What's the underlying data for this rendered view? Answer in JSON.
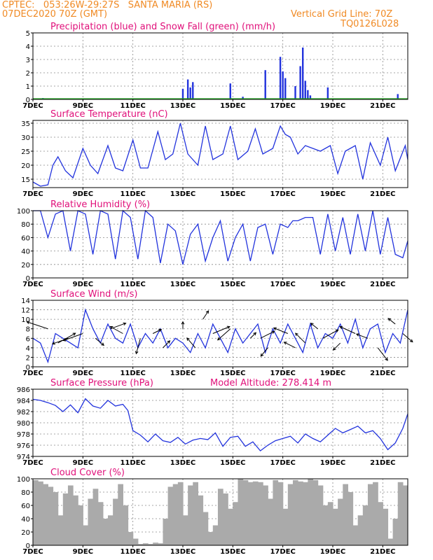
{
  "header": {
    "line1_left": "CPTEC:   053:26W-29:27S   SANTA MARIA (RS)",
    "line2_left": "07DEC2020 70Z (GMT)",
    "line1_right": "Vertical Grid Line: 70Z",
    "line2_right": "TQ0126L028"
  },
  "colors": {
    "title": "#e0107a",
    "header": "#f08a24",
    "series": "#2233dd",
    "snow": "#22aa22",
    "cloud": "#aaaaaa"
  },
  "x_ticks": [
    "7DEC",
    "9DEC",
    "11DEC",
    "13DEC",
    "15DEC",
    "17DEC",
    "19DEC",
    "21DEC"
  ],
  "chart_data": [
    {
      "type": "bar",
      "title": "Precipitation (blue) and Snow Fall (green) (mm/h)",
      "ylim": [
        0,
        5
      ],
      "yticks": [
        "0",
        "1",
        "2",
        "3",
        "4",
        "5"
      ],
      "x": [
        7.4,
        13.0,
        13.2,
        13.3,
        13.4,
        14.9,
        15.4,
        16.3,
        16.9,
        17.0,
        17.1,
        17.5,
        17.7,
        17.8,
        17.9,
        18.0,
        18.1,
        18.8,
        21.6
      ],
      "values": [
        0.1,
        0.8,
        1.5,
        0.9,
        1.3,
        1.2,
        0.2,
        2.2,
        3.2,
        2.1,
        1.6,
        1.0,
        2.5,
        3.9,
        1.4,
        0.7,
        0.3,
        0.9,
        0.4
      ],
      "snow": []
    },
    {
      "type": "line",
      "title": "Surface Temperature (nC)",
      "ylim": [
        12,
        36
      ],
      "yticks": [
        "15",
        "20",
        "25",
        "30",
        "35"
      ],
      "x": [
        7.0,
        7.3,
        7.6,
        7.8,
        8.0,
        8.3,
        8.6,
        9.0,
        9.3,
        9.6,
        10.0,
        10.3,
        10.6,
        11.0,
        11.3,
        11.6,
        12.0,
        12.3,
        12.6,
        12.9,
        13.2,
        13.6,
        13.9,
        14.2,
        14.6,
        14.9,
        15.2,
        15.6,
        15.9,
        16.2,
        16.6,
        16.9,
        17.1,
        17.3,
        17.6,
        17.9,
        18.2,
        18.5,
        18.9,
        19.2,
        19.5,
        19.9,
        20.2,
        20.5,
        20.9,
        21.2,
        21.5,
        21.9,
        22.0
      ],
      "y": [
        14,
        12.5,
        13,
        20,
        23,
        18,
        15.5,
        26,
        20,
        17,
        27,
        19,
        18,
        29,
        19,
        19,
        32,
        22,
        24,
        35,
        24,
        20,
        34,
        22,
        24,
        34,
        22,
        25,
        33,
        24,
        26,
        34,
        31,
        30,
        24,
        27,
        26,
        25,
        27,
        17,
        25,
        27,
        15,
        28,
        20,
        30,
        18,
        27,
        22
      ]
    },
    {
      "type": "line",
      "title": "Relative Humidity (%)",
      "ylim": [
        0,
        100
      ],
      "yticks": [
        "0",
        "20",
        "40",
        "60",
        "80",
        "100"
      ],
      "x": [
        7.0,
        7.3,
        7.6,
        7.9,
        8.2,
        8.5,
        8.8,
        9.1,
        9.4,
        9.7,
        10.0,
        10.3,
        10.6,
        10.9,
        11.2,
        11.5,
        11.8,
        12.1,
        12.4,
        12.7,
        13.0,
        13.3,
        13.6,
        13.9,
        14.2,
        14.5,
        14.8,
        15.1,
        15.4,
        15.7,
        16.0,
        16.3,
        16.6,
        16.9,
        17.2,
        17.4,
        17.6,
        17.9,
        18.2,
        18.5,
        18.8,
        19.1,
        19.4,
        19.7,
        20.0,
        20.3,
        20.6,
        20.9,
        21.2,
        21.5,
        21.8,
        22.0
      ],
      "y": [
        100,
        100,
        60,
        95,
        100,
        40,
        100,
        95,
        35,
        100,
        95,
        28,
        100,
        90,
        28,
        100,
        90,
        22,
        80,
        70,
        20,
        65,
        80,
        25,
        60,
        85,
        25,
        60,
        80,
        25,
        75,
        80,
        35,
        80,
        75,
        85,
        85,
        90,
        90,
        35,
        95,
        40,
        90,
        35,
        95,
        40,
        100,
        35,
        90,
        35,
        30,
        55
      ]
    },
    {
      "type": "line",
      "title": "Surface Wind (m/s)",
      "ylim": [
        0,
        14
      ],
      "yticks": [
        "0",
        "2",
        "4",
        "6",
        "8",
        "10",
        "12",
        "14"
      ],
      "x": [
        7.0,
        7.3,
        7.6,
        7.9,
        8.2,
        8.5,
        8.8,
        9.1,
        9.4,
        9.7,
        10.0,
        10.3,
        10.6,
        10.9,
        11.2,
        11.5,
        11.8,
        12.1,
        12.4,
        12.7,
        13.0,
        13.3,
        13.6,
        13.9,
        14.2,
        14.5,
        14.8,
        15.1,
        15.4,
        15.7,
        16.0,
        16.3,
        16.6,
        16.9,
        17.2,
        17.5,
        17.8,
        18.1,
        18.4,
        18.7,
        19.0,
        19.3,
        19.6,
        19.9,
        20.2,
        20.5,
        20.8,
        21.1,
        21.4,
        21.7,
        22.0
      ],
      "y": [
        6,
        5,
        1,
        7,
        6,
        5,
        4,
        12,
        8,
        5,
        9,
        6,
        5,
        9,
        4,
        7,
        5,
        8,
        4,
        6,
        5,
        3,
        7,
        4,
        9,
        6,
        3,
        8,
        5,
        7,
        9,
        3,
        8,
        5,
        9,
        6,
        3,
        9,
        4,
        7,
        6,
        9,
        5,
        10,
        4,
        8,
        9,
        3,
        7,
        5,
        12
      ]
    },
    {
      "type": "line",
      "title": "Surface Pressure (hPa)",
      "subtitle": "Model Altitude: 278.414  m",
      "ylim": [
        974,
        986
      ],
      "yticks": [
        "974",
        "976",
        "978",
        "980",
        "982",
        "984",
        "986"
      ],
      "x": [
        7.0,
        7.3,
        7.6,
        7.9,
        8.2,
        8.5,
        8.8,
        9.1,
        9.4,
        9.7,
        10.0,
        10.3,
        10.6,
        10.8,
        11.0,
        11.3,
        11.6,
        11.9,
        12.2,
        12.5,
        12.8,
        13.1,
        13.4,
        13.7,
        14.0,
        14.3,
        14.6,
        14.9,
        15.2,
        15.5,
        15.8,
        16.1,
        16.4,
        16.7,
        17.0,
        17.3,
        17.6,
        17.9,
        18.2,
        18.5,
        18.8,
        19.1,
        19.4,
        19.7,
        20.0,
        20.3,
        20.6,
        20.9,
        21.2,
        21.5,
        21.8,
        22.0
      ],
      "y": [
        984.2,
        984.0,
        983.6,
        983.1,
        982.0,
        983.2,
        981.8,
        984.3,
        983.0,
        982.6,
        984.0,
        983.0,
        983.3,
        982.2,
        978.6,
        977.8,
        976.6,
        978.0,
        976.8,
        976.5,
        977.4,
        976.2,
        976.9,
        977.2,
        977.0,
        978.2,
        975.8,
        977.4,
        977.6,
        975.8,
        976.6,
        975.0,
        976.0,
        976.8,
        977.2,
        977.6,
        976.4,
        978.0,
        977.2,
        976.6,
        977.8,
        979.0,
        978.2,
        978.8,
        979.4,
        978.2,
        978.6,
        977.2,
        975.2,
        976.4,
        979.0,
        981.6
      ]
    },
    {
      "type": "area",
      "title": "Cloud Cover (%)",
      "ylim": [
        0,
        100
      ],
      "yticks": [
        "0",
        "20",
        "40",
        "60",
        "80",
        "100"
      ],
      "x": [
        7.0,
        7.2,
        7.4,
        7.6,
        7.8,
        8.0,
        8.2,
        8.4,
        8.6,
        8.8,
        9.0,
        9.2,
        9.4,
        9.6,
        9.8,
        10.0,
        10.2,
        10.4,
        10.6,
        10.8,
        11.0,
        11.2,
        11.4,
        11.6,
        11.8,
        12.0,
        12.2,
        12.4,
        12.6,
        12.8,
        13.0,
        13.2,
        13.4,
        13.6,
        13.8,
        14.0,
        14.2,
        14.4,
        14.6,
        14.8,
        15.0,
        15.2,
        15.4,
        15.6,
        15.8,
        16.0,
        16.2,
        16.4,
        16.6,
        16.8,
        17.0,
        17.2,
        17.4,
        17.6,
        17.8,
        18.0,
        18.2,
        18.4,
        18.6,
        18.8,
        19.0,
        19.2,
        19.4,
        19.6,
        19.8,
        20.0,
        20.2,
        20.4,
        20.6,
        20.8,
        21.0,
        21.2,
        21.4,
        21.6,
        21.8,
        22.0
      ],
      "y": [
        98,
        96,
        92,
        88,
        80,
        45,
        78,
        90,
        75,
        60,
        30,
        70,
        85,
        65,
        40,
        45,
        70,
        92,
        60,
        20,
        10,
        2,
        3,
        2,
        4,
        3,
        40,
        88,
        92,
        95,
        45,
        90,
        95,
        75,
        50,
        20,
        30,
        85,
        78,
        55,
        65,
        100,
        98,
        95,
        96,
        95,
        90,
        70,
        98,
        95,
        55,
        92,
        98,
        96,
        95,
        100,
        98,
        90,
        60,
        65,
        55,
        70,
        92,
        80,
        30,
        45,
        60,
        92,
        95,
        65,
        55,
        10,
        40,
        95,
        90,
        85
      ]
    }
  ]
}
